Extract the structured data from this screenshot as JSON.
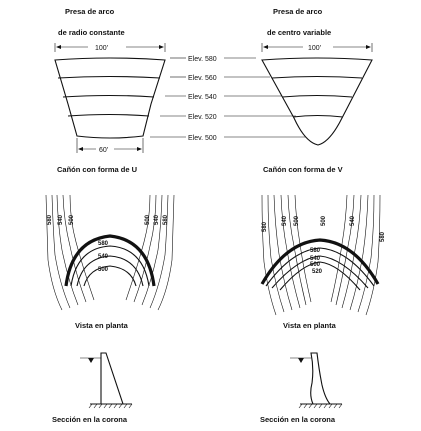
{
  "left": {
    "title_line1": "Presa de arco",
    "title_line2": "de radio constante",
    "width_top": "100'",
    "width_bottom": "60'",
    "canyon_caption": "Cañón con forma de U",
    "plan_caption": "Vista en planta",
    "section_caption": "Sección en la corona",
    "plan_contours_left": [
      "580",
      "540",
      "500"
    ],
    "plan_contours_right": [
      "500",
      "540",
      "580"
    ],
    "plan_arcs": [
      "580",
      "540",
      "500"
    ]
  },
  "elevations": [
    "Elev. 580",
    "Elev. 560",
    "Elev. 540",
    "Elev. 520",
    "Elev. 500"
  ],
  "right": {
    "title_line1": "Presa de arco",
    "title_line2": "de centro variable",
    "width_top": "100'",
    "canyon_caption": "Cañón con forma de V",
    "plan_caption": "Vista en planta",
    "section_caption": "Sección en la corona",
    "plan_contours_left": [
      "580",
      "540",
      "500"
    ],
    "plan_contours_right": [
      "500",
      "540",
      "580"
    ],
    "plan_arcs": [
      "580",
      "540",
      "500",
      "520"
    ]
  }
}
